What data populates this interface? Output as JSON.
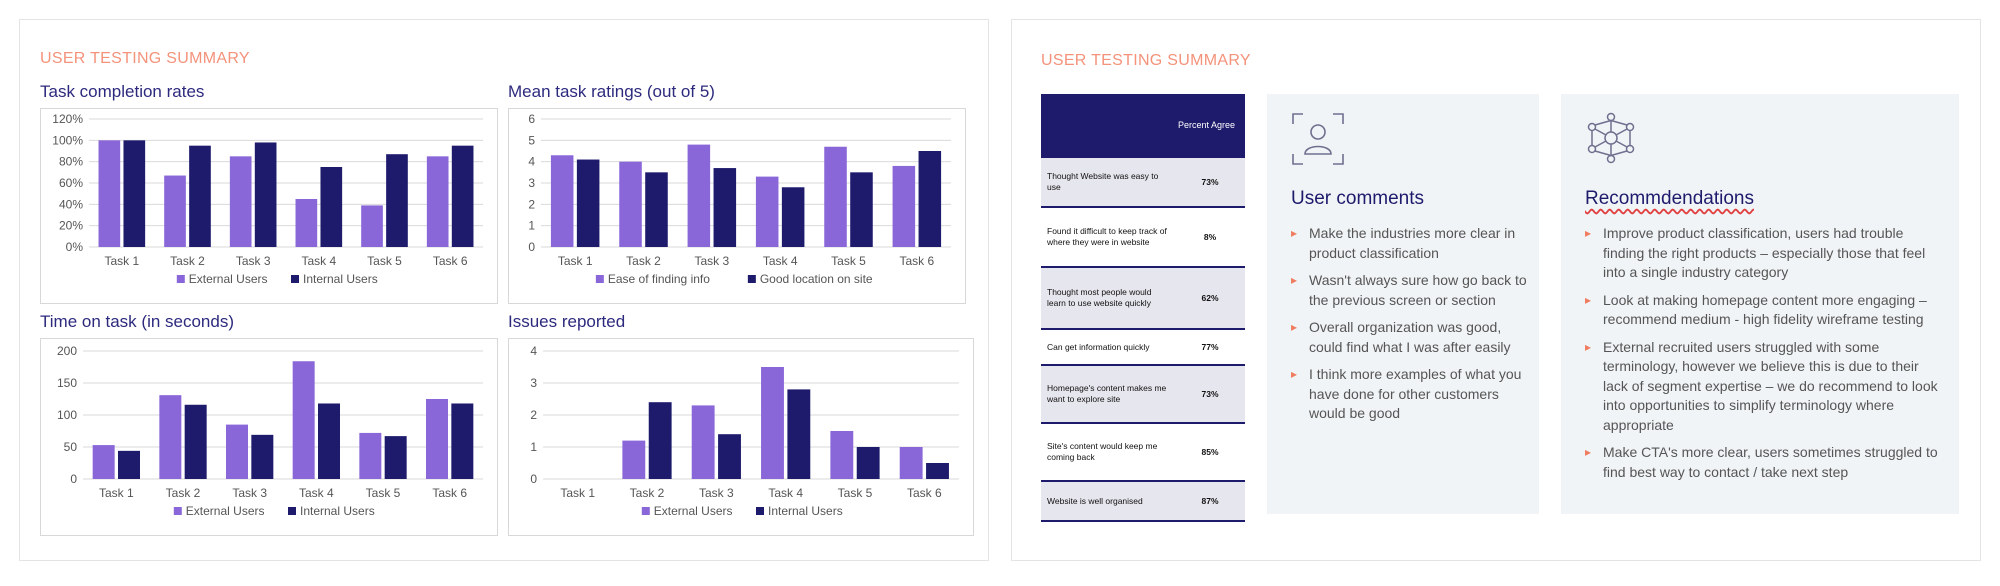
{
  "left_slide": {
    "title": "USER TESTING SUMMARY",
    "charts": {
      "completion": {
        "title": "Task completion rates"
      },
      "ratings": {
        "title": "Mean task ratings (out of 5)"
      },
      "time": {
        "title": "Time on task (in seconds)"
      },
      "issues": {
        "title": "Issues reported"
      }
    }
  },
  "chart_data": [
    {
      "id": "completion",
      "type": "bar",
      "title": "Task completion rates",
      "categories": [
        "Task 1",
        "Task 2",
        "Task 3",
        "Task 4",
        "Task 5",
        "Task 6"
      ],
      "series": [
        {
          "name": "External Users",
          "values": [
            100,
            67,
            85,
            45,
            39,
            85
          ]
        },
        {
          "name": "Internal Users",
          "values": [
            100,
            95,
            98,
            75,
            87,
            95
          ]
        }
      ],
      "ylim": [
        0,
        120
      ],
      "yticks": [
        0,
        20,
        40,
        60,
        80,
        100,
        120
      ],
      "ytick_labels": [
        "0%",
        "20%",
        "40%",
        "60%",
        "80%",
        "100%",
        "120%"
      ],
      "legend": "bottom"
    },
    {
      "id": "ratings",
      "type": "bar",
      "title": "Mean task ratings (out of 5)",
      "categories": [
        "Task 1",
        "Task 2",
        "Task 3",
        "Task 4",
        "Task 5",
        "Task 6"
      ],
      "series": [
        {
          "name": "Ease of finding info",
          "values": [
            4.3,
            4.0,
            4.8,
            3.3,
            4.7,
            3.8
          ]
        },
        {
          "name": "Good location on site",
          "values": [
            4.1,
            3.5,
            3.7,
            2.8,
            3.5,
            4.5
          ]
        }
      ],
      "ylim": [
        0,
        6
      ],
      "yticks": [
        0,
        1,
        2,
        3,
        4,
        5,
        6
      ],
      "ytick_labels": [
        "0",
        "1",
        "2",
        "3",
        "4",
        "5",
        "6"
      ],
      "legend": "bottom"
    },
    {
      "id": "time",
      "type": "bar",
      "title": "Time on task (in seconds)",
      "categories": [
        "Task 1",
        "Task 2",
        "Task 3",
        "Task 4",
        "Task 5",
        "Task 6"
      ],
      "series": [
        {
          "name": "External Users",
          "values": [
            53,
            131,
            85,
            184,
            72,
            125
          ]
        },
        {
          "name": "Internal Users",
          "values": [
            44,
            116,
            69,
            118,
            67,
            118
          ]
        }
      ],
      "ylim": [
        0,
        200
      ],
      "yticks": [
        0,
        50,
        100,
        150,
        200
      ],
      "ytick_labels": [
        "0",
        "50",
        "100",
        "150",
        "200"
      ],
      "legend": "bottom"
    },
    {
      "id": "issues",
      "type": "bar",
      "title": "Issues reported",
      "categories": [
        "Task 1",
        "Task 2",
        "Task 3",
        "Task 4",
        "Task 5",
        "Task 6"
      ],
      "series": [
        {
          "name": "External Users",
          "values": [
            0,
            1.2,
            2.3,
            3.5,
            1.5,
            1.0
          ]
        },
        {
          "name": "Internal Users",
          "values": [
            0,
            2.4,
            1.4,
            2.8,
            1.0,
            0.5
          ]
        }
      ],
      "ylim": [
        0,
        4
      ],
      "yticks": [
        0,
        1,
        2,
        3,
        4
      ],
      "ytick_labels": [
        "0",
        "1",
        "2",
        "3",
        "4"
      ],
      "legend": "bottom"
    }
  ],
  "colors": {
    "series_a": "#8a67d9",
    "series_b": "#1e1b6d",
    "accent": "#f4927a",
    "grid": "#d9d9d9"
  },
  "right_slide": {
    "title": "USER TESTING SUMMARY",
    "survey": {
      "header": "Percent Agree",
      "rows": [
        {
          "question": "Thought Website was easy to use",
          "value": "73%"
        },
        {
          "question": "Found it difficult to keep track of where they were in website",
          "value": "8%"
        },
        {
          "question": "Thought most people would learn to use website quickly",
          "value": "62%"
        },
        {
          "question": "Can get information quickly",
          "value": "77%"
        },
        {
          "question": "Homepage's content makes me want to explore site",
          "value": "73%"
        },
        {
          "question": "Site's content would keep me coming back",
          "value": "85%"
        },
        {
          "question": "Website is well organised",
          "value": "87%"
        }
      ]
    },
    "comments": {
      "icon": "user-scan-icon",
      "title": "User comments",
      "items": [
        "Make the industries more clear in product classification",
        "Wasn't always sure how go back to the previous screen or section",
        "Overall organization was good, could find what I was after easily",
        "I think more examples of what you have done for other customers would be good"
      ]
    },
    "recommendations": {
      "icon": "network-icon",
      "title": "Recommdendations",
      "items": [
        "Improve product classification, users had trouble finding the right products – especially those that feel into a single industry category",
        "Look at making homepage content more engaging – recommend medium - high fidelity wireframe testing",
        "External recruited users struggled with some terminology, however we believe this is due to their lack of segment expertise – we do recommend to look into opportunities to simplify terminology where appropriate",
        "Make CTA's more clear, users sometimes struggled to find best way to contact / take next step"
      ]
    }
  }
}
